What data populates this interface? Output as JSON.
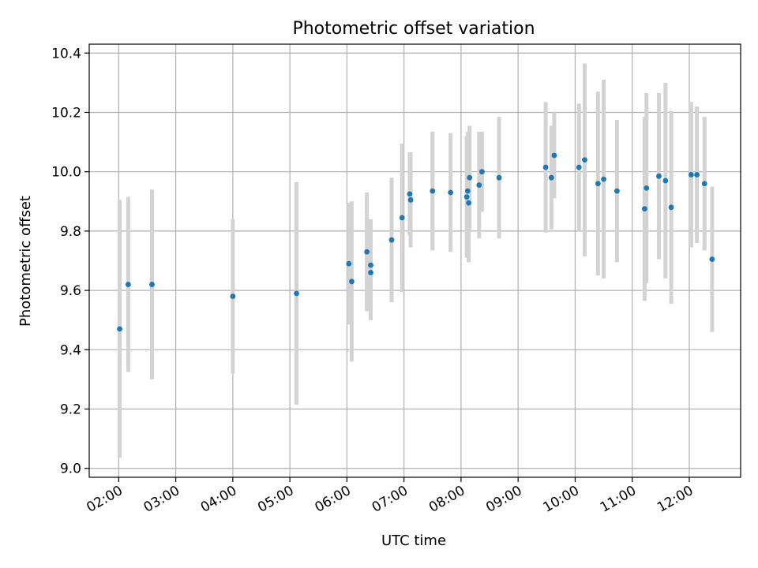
{
  "chart_data": {
    "type": "scatter",
    "title": "Photometric offset variation",
    "xlabel": "UTC time",
    "ylabel": "Photometric offset",
    "x_unit": "time (HH:MM, UTC)",
    "xlim": [
      "01:29",
      "12:54"
    ],
    "ylim": [
      8.97,
      10.43
    ],
    "x_ticks": [
      "02:00",
      "03:00",
      "04:00",
      "05:00",
      "06:00",
      "07:00",
      "08:00",
      "09:00",
      "10:00",
      "11:00",
      "12:00"
    ],
    "y_ticks": [
      9.0,
      9.2,
      9.4,
      9.6,
      9.8,
      10.0,
      10.2,
      10.4
    ],
    "y_tick_labels": [
      "9.0",
      "9.2",
      "9.4",
      "9.6",
      "9.8",
      "10.0",
      "10.2",
      "10.4"
    ],
    "grid": true,
    "x_tick_rotation_deg": 30,
    "series": [
      {
        "marker_color": "#1f77b4",
        "errorbar_color": "#d3d3d3",
        "points": [
          {
            "x": "02:01",
            "y": 9.47,
            "err": 0.435
          },
          {
            "x": "02:10",
            "y": 9.62,
            "err": 0.295
          },
          {
            "x": "02:35",
            "y": 9.62,
            "err": 0.32
          },
          {
            "x": "04:00",
            "y": 9.58,
            "err": 0.26
          },
          {
            "x": "05:07",
            "y": 9.59,
            "err": 0.375
          },
          {
            "x": "06:02",
            "y": 9.69,
            "err": 0.205
          },
          {
            "x": "06:05",
            "y": 9.63,
            "err": 0.27
          },
          {
            "x": "06:21",
            "y": 9.73,
            "err": 0.2
          },
          {
            "x": "06:25",
            "y": 9.66,
            "err": 0.16
          },
          {
            "x": "06:25",
            "y": 9.685,
            "err": 0.155
          },
          {
            "x": "06:47",
            "y": 9.77,
            "err": 0.21
          },
          {
            "x": "06:58",
            "y": 9.845,
            "err": 0.25
          },
          {
            "x": "07:06",
            "y": 9.925,
            "err": 0.14
          },
          {
            "x": "07:07",
            "y": 9.905,
            "err": 0.16
          },
          {
            "x": "07:30",
            "y": 9.935,
            "err": 0.2
          },
          {
            "x": "07:49",
            "y": 9.93,
            "err": 0.2
          },
          {
            "x": "08:06",
            "y": 9.915,
            "err": 0.205
          },
          {
            "x": "08:07",
            "y": 9.935,
            "err": 0.2
          },
          {
            "x": "08:08",
            "y": 9.895,
            "err": 0.2
          },
          {
            "x": "08:09",
            "y": 9.98,
            "err": 0.175
          },
          {
            "x": "08:19",
            "y": 9.955,
            "err": 0.18
          },
          {
            "x": "08:22",
            "y": 10.0,
            "err": 0.135
          },
          {
            "x": "08:40",
            "y": 9.98,
            "err": 0.205
          },
          {
            "x": "09:29",
            "y": 10.015,
            "err": 0.22
          },
          {
            "x": "09:35",
            "y": 9.98,
            "err": 0.175
          },
          {
            "x": "09:38",
            "y": 10.055,
            "err": 0.145
          },
          {
            "x": "10:04",
            "y": 10.015,
            "err": 0.215
          },
          {
            "x": "10:10",
            "y": 10.04,
            "err": 0.325
          },
          {
            "x": "10:24",
            "y": 9.96,
            "err": 0.31
          },
          {
            "x": "10:30",
            "y": 9.975,
            "err": 0.335
          },
          {
            "x": "10:44",
            "y": 9.935,
            "err": 0.24
          },
          {
            "x": "11:13",
            "y": 9.875,
            "err": 0.31
          },
          {
            "x": "11:15",
            "y": 9.945,
            "err": 0.32
          },
          {
            "x": "11:28",
            "y": 9.985,
            "err": 0.28
          },
          {
            "x": "11:35",
            "y": 9.97,
            "err": 0.33
          },
          {
            "x": "11:41",
            "y": 9.88,
            "err": 0.325
          },
          {
            "x": "12:02",
            "y": 9.99,
            "err": 0.245
          },
          {
            "x": "12:08",
            "y": 9.99,
            "err": 0.23
          },
          {
            "x": "12:16",
            "y": 9.96,
            "err": 0.225
          },
          {
            "x": "12:24",
            "y": 9.705,
            "err": 0.245
          }
        ]
      }
    ]
  }
}
